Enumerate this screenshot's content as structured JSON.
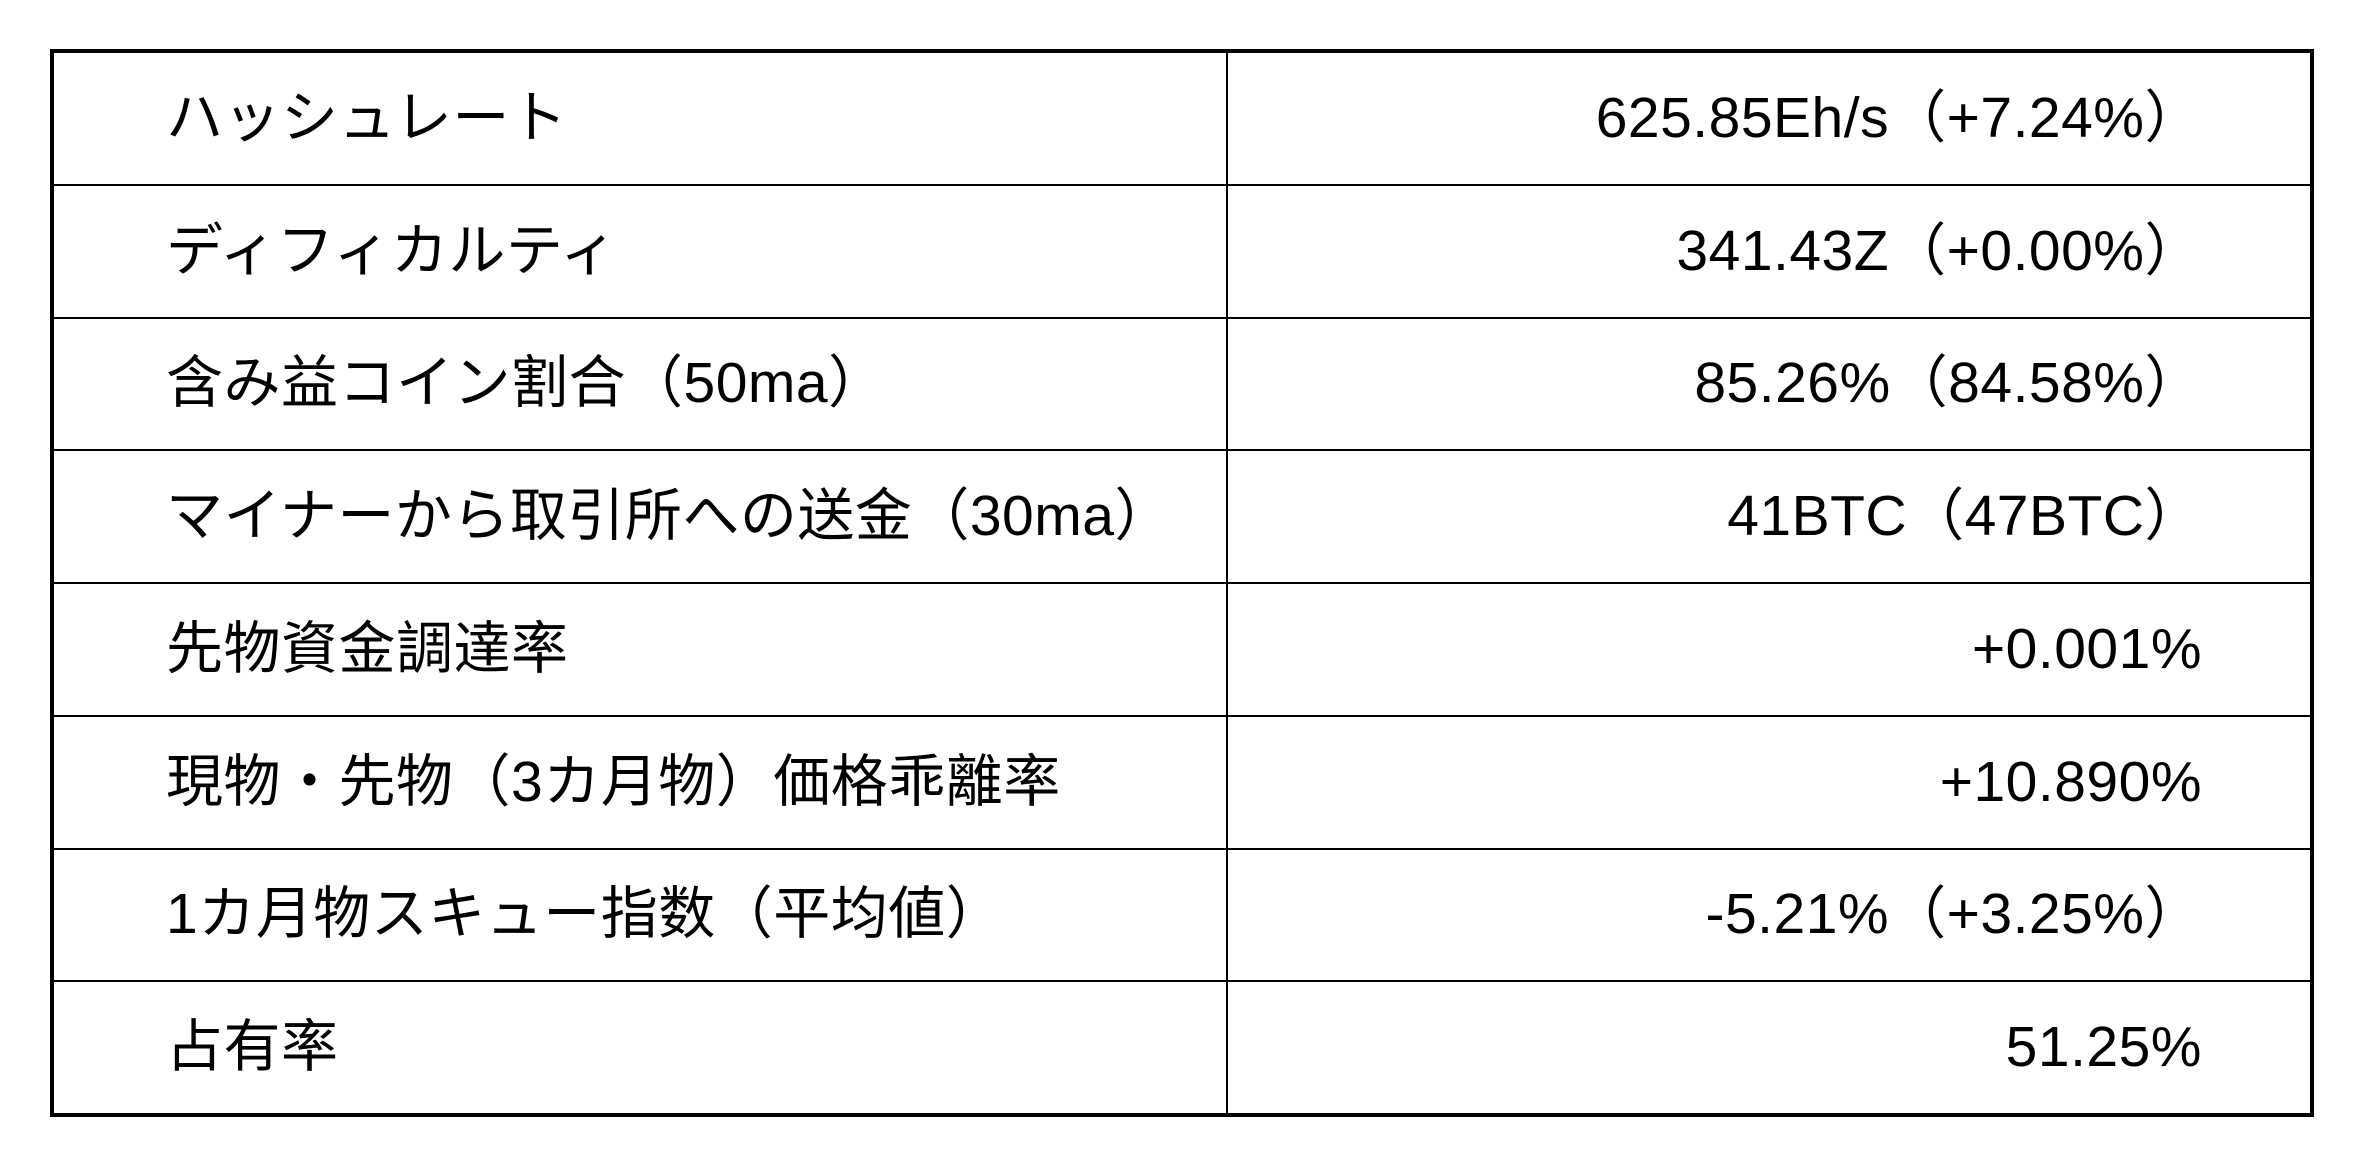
{
  "colors": {
    "background": "#ffffff",
    "border": "#000000",
    "text": "#000000"
  },
  "chart_data": {
    "type": "table",
    "grid": true,
    "columns": 2,
    "column_roles": [
      "metric-name",
      "metric-value"
    ],
    "value_alignment": "right",
    "rows": [
      {
        "label": "ハッシュレート",
        "value": "625.85Eh/s（+7.24%）"
      },
      {
        "label": "ディフィカルティ",
        "value": "341.43Z（+0.00%）"
      },
      {
        "label": "含み益コイン割合（50ma）",
        "value": "85.26%（84.58%）"
      },
      {
        "label": "マイナーから取引所への送金（30ma）",
        "value": "41BTC（47BTC）"
      },
      {
        "label": "先物資金調達率",
        "value": "+0.001%"
      },
      {
        "label": "現物・先物（3カ月物）価格乖離率",
        "value": "+10.890%"
      },
      {
        "label": "1カ月物スキュー指数（平均値）",
        "value": "-5.21%（+3.25%）"
      },
      {
        "label": "占有率",
        "value": "51.25%"
      }
    ]
  }
}
